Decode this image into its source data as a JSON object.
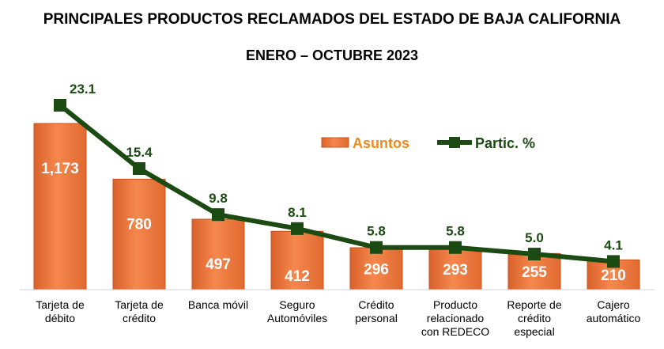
{
  "title": "PRINCIPALES PRODUCTOS RECLAMADOS DEL ESTADO DE BAJA CALIFORNIA",
  "subtitle": "ENERO – OCTUBRE 2023",
  "colors": {
    "bar": "#f07f45",
    "bar_dark": "#c8531c",
    "line": "#1b4a12",
    "legend_bar_text": "#ee8a1f"
  },
  "chart_data": {
    "type": "bar",
    "categories": [
      [
        "Tarjeta de",
        "débito"
      ],
      [
        "Tarjeta de",
        "crédito"
      ],
      [
        "Banca móvil"
      ],
      [
        "Seguro",
        "Automóviles"
      ],
      [
        "Crédito",
        "personal"
      ],
      [
        "Producto",
        "relacionado",
        "con REDECO"
      ],
      [
        "Reporte de",
        "crédito",
        "especial"
      ],
      [
        "Cajero",
        "automático"
      ]
    ],
    "series": [
      {
        "name": "Asuntos",
        "type": "bar",
        "values": [
          1173,
          780,
          497,
          412,
          296,
          293,
          255,
          210
        ],
        "labels": [
          "1,173",
          "780",
          "497",
          "412",
          "296",
          "293",
          "255",
          "210"
        ]
      },
      {
        "name": "Partic. %",
        "type": "line",
        "values": [
          23.1,
          15.4,
          9.8,
          8.1,
          5.8,
          5.8,
          5.0,
          4.1
        ],
        "labels": [
          "23.1",
          "15.4",
          "9.8",
          "8.1",
          "5.8",
          "5.8",
          "5.0",
          "4.1"
        ]
      }
    ],
    "legend": [
      "Asuntos",
      "Partic. %"
    ],
    "legend_position": "center-right"
  }
}
